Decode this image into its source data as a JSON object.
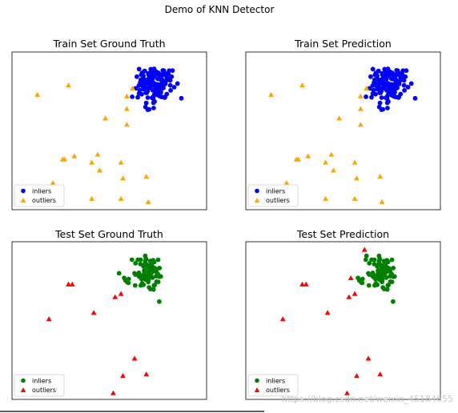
{
  "figure": {
    "title": "Demo of KNN Detector",
    "watermark": "https://blog.csdn.net/weixin_45184655"
  },
  "colors": {
    "train_inlier": "#0000ff",
    "train_outlier": "#ffa500",
    "test_inlier": "#008000",
    "test_outlier": "#ff0000"
  },
  "chart_data": [
    {
      "type": "scatter",
      "title": "Train Set Ground Truth",
      "xlim": [
        0,
        10
      ],
      "ylim": [
        0,
        10
      ],
      "legend": {
        "placement": "bottom-left",
        "entries": [
          "inliers",
          "outliers"
        ]
      },
      "series": [
        {
          "name": "inliers",
          "marker": "circle",
          "color": "#0000ff",
          "cluster": {
            "n": 150,
            "cx": 7.3,
            "cy": 7.9,
            "sx": 0.45,
            "sy": 0.55,
            "seed": 7
          }
        },
        {
          "name": "outliers",
          "marker": "triangle",
          "color": "#ffa500",
          "points": [
            [
              1.3,
              7.3
            ],
            [
              2.9,
              7.9
            ],
            [
              6.2,
              7.7
            ],
            [
              5.9,
              7.2
            ],
            [
              5.9,
              6.4
            ],
            [
              4.8,
              5.8
            ],
            [
              5.9,
              5.4
            ],
            [
              2.6,
              3.2
            ],
            [
              2.7,
              3.2
            ],
            [
              3.2,
              3.4
            ],
            [
              4.4,
              3.5
            ],
            [
              4.1,
              3.0
            ],
            [
              5.6,
              3.0
            ],
            [
              4.5,
              2.5
            ],
            [
              2.1,
              1.7
            ],
            [
              5.7,
              2.0
            ],
            [
              6.9,
              2.1
            ],
            [
              4.1,
              0.7
            ],
            [
              5.6,
              0.7
            ],
            [
              7.0,
              0.5
            ]
          ]
        }
      ]
    },
    {
      "type": "scatter",
      "title": "Train Set Prediction",
      "xlim": [
        0,
        10
      ],
      "ylim": [
        0,
        10
      ],
      "legend": {
        "placement": "bottom-left",
        "entries": [
          "inliers",
          "outliers"
        ]
      },
      "series": [
        {
          "name": "inliers",
          "marker": "circle",
          "color": "#0000ff",
          "cluster": {
            "n": 150,
            "cx": 7.3,
            "cy": 7.9,
            "sx": 0.45,
            "sy": 0.55,
            "seed": 7
          }
        },
        {
          "name": "outliers",
          "marker": "triangle",
          "color": "#ffa500",
          "points": [
            [
              1.3,
              7.3
            ],
            [
              2.9,
              7.9
            ],
            [
              6.2,
              7.7
            ],
            [
              5.9,
              7.2
            ],
            [
              5.9,
              6.4
            ],
            [
              4.8,
              5.8
            ],
            [
              5.9,
              5.4
            ],
            [
              2.6,
              3.2
            ],
            [
              2.7,
              3.2
            ],
            [
              3.2,
              3.4
            ],
            [
              4.4,
              3.5
            ],
            [
              4.1,
              3.0
            ],
            [
              5.6,
              3.0
            ],
            [
              4.5,
              2.5
            ],
            [
              2.1,
              1.7
            ],
            [
              5.7,
              2.0
            ],
            [
              6.9,
              2.1
            ],
            [
              4.1,
              0.7
            ],
            [
              5.6,
              0.7
            ],
            [
              7.0,
              0.5
            ]
          ]
        }
      ]
    },
    {
      "type": "scatter",
      "title": "Test Set Ground Truth",
      "xlim": [
        0,
        10
      ],
      "ylim": [
        0,
        10
      ],
      "legend": {
        "placement": "bottom-left",
        "entries": [
          "inliers",
          "outliers"
        ]
      },
      "series": [
        {
          "name": "inliers",
          "marker": "circle",
          "color": "#008000",
          "cluster": {
            "n": 90,
            "cx": 7.0,
            "cy": 7.9,
            "sx": 0.4,
            "sy": 0.55,
            "seed": 21
          },
          "points": [
            [
              5.5,
              8.0
            ]
          ]
        },
        {
          "name": "outliers",
          "marker": "triangle",
          "color": "#ff0000",
          "points": [
            [
              2.9,
              7.3
            ],
            [
              3.1,
              7.3
            ],
            [
              5.6,
              6.7
            ],
            [
              5.3,
              6.5
            ],
            [
              4.2,
              5.5
            ],
            [
              1.9,
              5.1
            ],
            [
              6.3,
              2.6
            ],
            [
              5.7,
              1.5
            ],
            [
              6.9,
              1.6
            ],
            [
              5.2,
              0.4
            ]
          ]
        }
      ]
    },
    {
      "type": "scatter",
      "title": "Test Set Prediction",
      "xlim": [
        0,
        10
      ],
      "ylim": [
        0,
        10
      ],
      "legend": {
        "placement": "bottom-left",
        "entries": [
          "inliers",
          "outliers"
        ]
      },
      "series": [
        {
          "name": "inliers",
          "marker": "circle",
          "color": "#008000",
          "cluster": {
            "n": 90,
            "cx": 7.0,
            "cy": 7.9,
            "sx": 0.4,
            "sy": 0.55,
            "seed": 21
          },
          "points": [
            [
              6.2,
              9.1
            ]
          ]
        },
        {
          "name": "outliers",
          "marker": "triangle",
          "color": "#ff0000",
          "points": [
            [
              6.1,
              9.5
            ],
            [
              2.9,
              7.3
            ],
            [
              3.1,
              7.3
            ],
            [
              5.4,
              7.7
            ],
            [
              5.6,
              6.7
            ],
            [
              5.3,
              6.5
            ],
            [
              4.2,
              5.5
            ],
            [
              1.9,
              5.1
            ],
            [
              6.3,
              2.6
            ],
            [
              5.7,
              1.5
            ],
            [
              6.9,
              1.6
            ],
            [
              5.2,
              0.4
            ]
          ]
        }
      ]
    }
  ]
}
